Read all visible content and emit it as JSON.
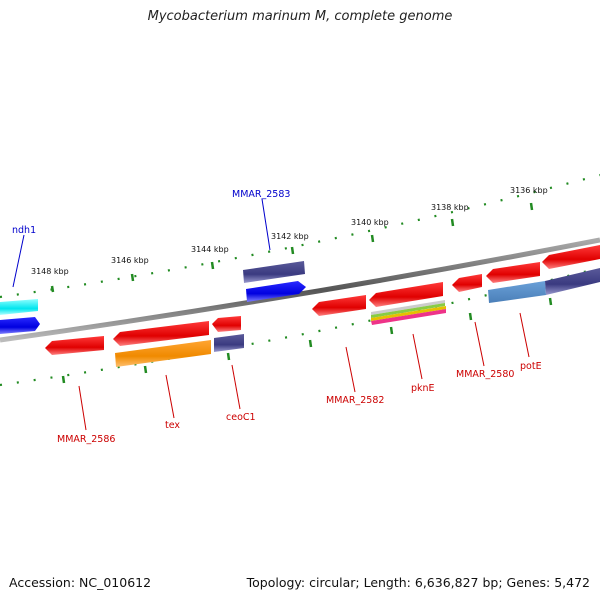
{
  "title": "Mycobacterium marinum M, complete genome",
  "footer": {
    "accession": "Accession: NC_010612",
    "summary": "Topology: circular; Length: 6,636,827 bp; Genes: 5,472"
  },
  "scale": {
    "ticks": [
      "3136 kbp",
      "3138 kbp",
      "3140 kbp",
      "3142 kbp",
      "3144 kbp",
      "3146 kbp",
      "3148 kbp"
    ]
  },
  "genes": [
    {
      "id": "ndh1",
      "label": "ndh1",
      "color": "#0000cc"
    },
    {
      "id": "mmar2583",
      "label": "MMAR_2583",
      "color": "#0000cc"
    },
    {
      "id": "mmar2586",
      "label": "MMAR_2586",
      "color": "#cc0000"
    },
    {
      "id": "tex",
      "label": "tex",
      "color": "#cc0000"
    },
    {
      "id": "ceoc1",
      "label": "ceoC1",
      "color": "#cc0000"
    },
    {
      "id": "mmar2582",
      "label": "MMAR_2582",
      "color": "#cc0000"
    },
    {
      "id": "pkne",
      "label": "pknE",
      "color": "#cc0000"
    },
    {
      "id": "mmar2580",
      "label": "MMAR_2580",
      "color": "#cc0000"
    },
    {
      "id": "pote",
      "label": "potE",
      "color": "#cc0000"
    }
  ]
}
